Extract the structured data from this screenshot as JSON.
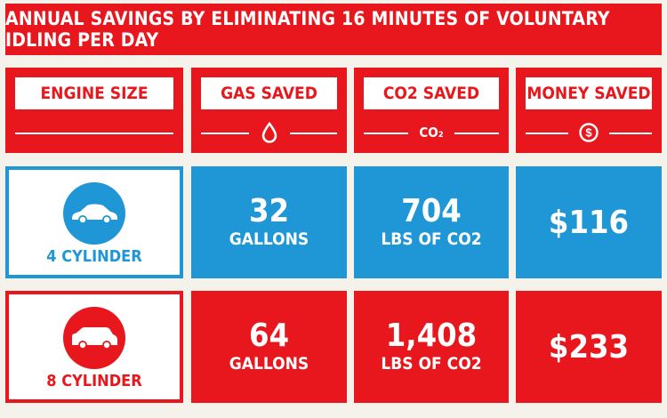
{
  "title": "ANNUAL SAVINGS BY ELIMINATING 16 MINUTES OF VOLUNTARY IDLING PER DAY",
  "headers": [
    {
      "label": "ENGINE SIZE",
      "icon": ""
    },
    {
      "label": "GAS SAVED",
      "icon": "droplet-icon"
    },
    {
      "label": "CO2 SAVED",
      "icon": "co2-icon",
      "icon_text": "CO₂"
    },
    {
      "label": "MONEY SAVED",
      "icon": "dollar-icon"
    }
  ],
  "rows": [
    {
      "engine": "4 CYLINDER",
      "engine_icon": "sedan-car-icon",
      "gas_value": "32",
      "gas_unit": "GALLONS",
      "co2_value": "704",
      "co2_unit": "LBS OF CO2",
      "money": "$116",
      "color": "#1f96d6"
    },
    {
      "engine": "8 CYLINDER",
      "engine_icon": "suv-car-icon",
      "gas_value": "64",
      "gas_unit": "GALLONS",
      "co2_value": "1,408",
      "co2_unit": "LBS OF CO2",
      "money": "$233",
      "color": "#e8171d"
    }
  ],
  "colors": {
    "red": "#e8171d",
    "blue": "#1f96d6",
    "background": "#f5f2ec"
  }
}
